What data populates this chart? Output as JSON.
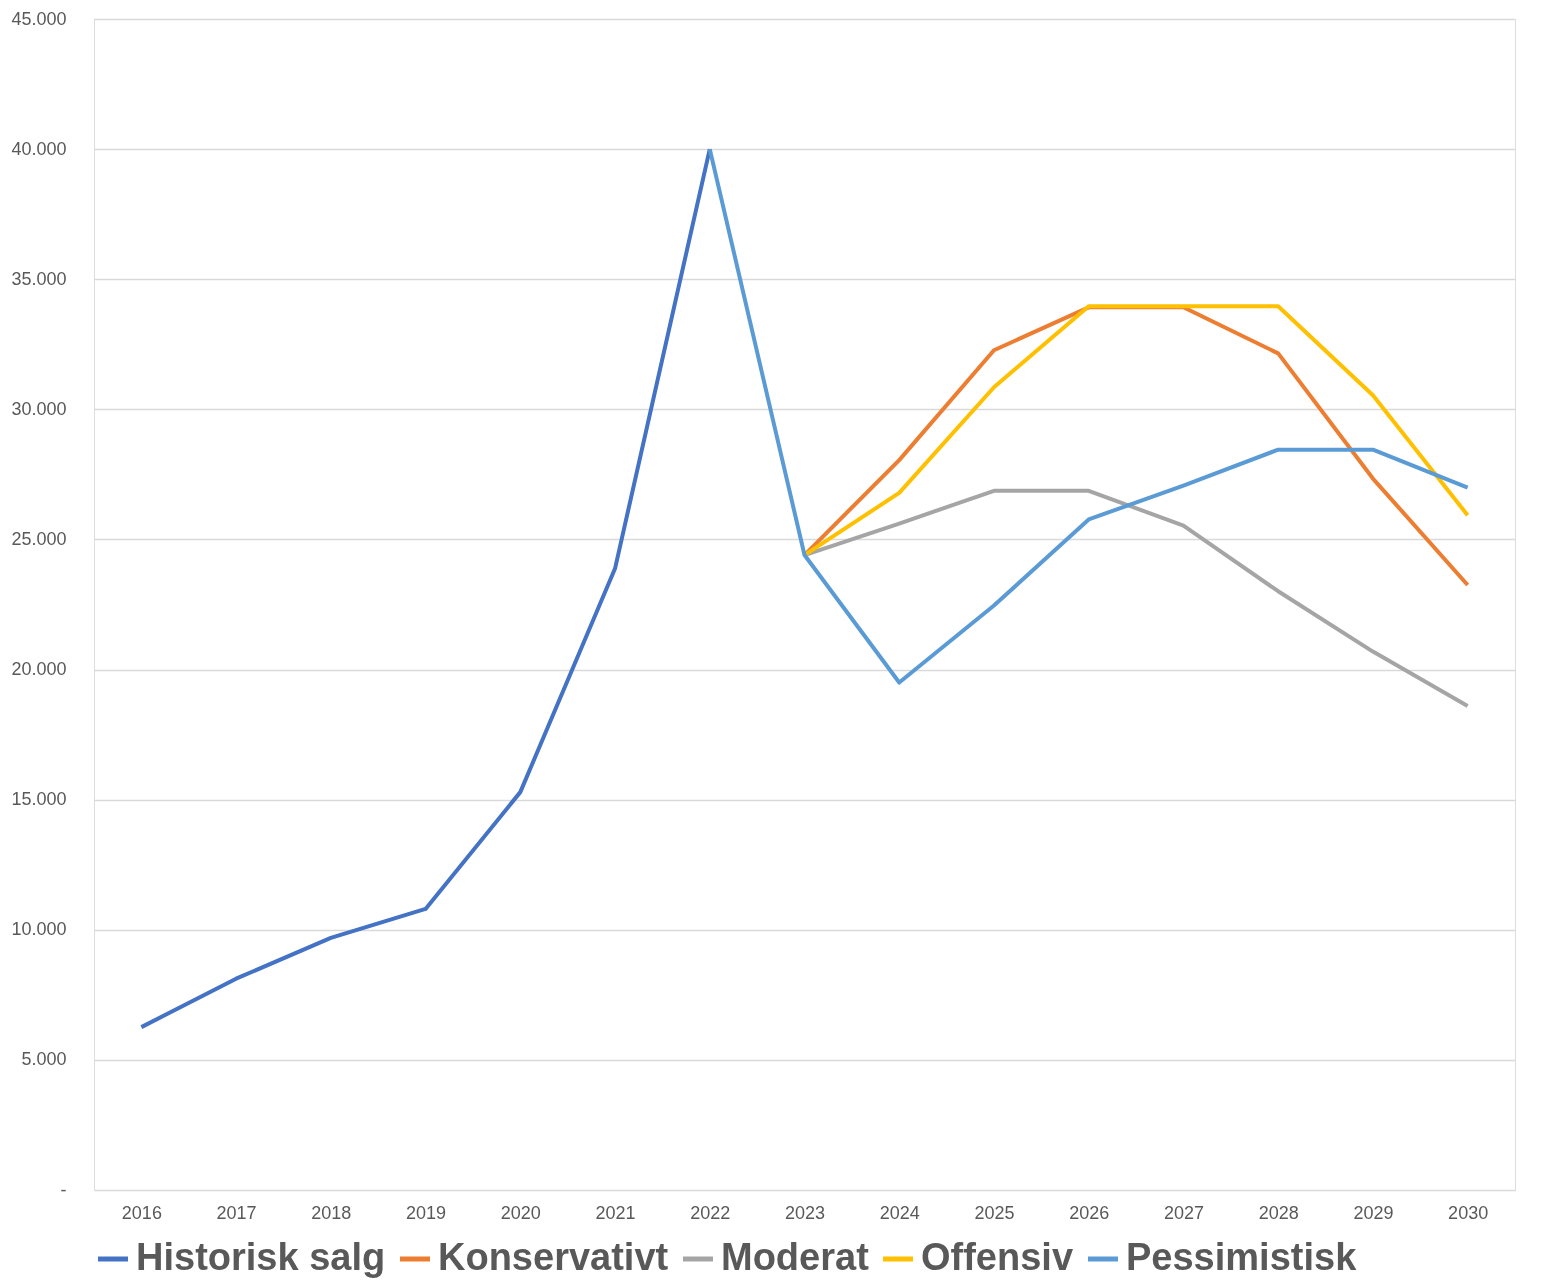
{
  "chart_data": {
    "type": "line",
    "categories": [
      "2016",
      "2017",
      "2018",
      "2019",
      "2020",
      "2021",
      "2022",
      "2023",
      "2024",
      "2025",
      "2026",
      "2027",
      "2028",
      "2029",
      "2030"
    ],
    "series": [
      {
        "name": "Historisk salg",
        "color": "#4472c4",
        "values": [
          6260,
          8120,
          9690,
          10800,
          15290,
          23880,
          40000,
          null,
          null,
          null,
          null,
          null,
          null,
          null,
          null
        ]
      },
      {
        "name": "Konservativt",
        "color": "#ed7d31",
        "values": [
          null,
          null,
          null,
          null,
          null,
          null,
          null,
          24400,
          28050,
          32270,
          33920,
          33920,
          32150,
          27340,
          23250
        ]
      },
      {
        "name": "Moderat",
        "color": "#a5a5a5",
        "values": [
          null,
          null,
          null,
          null,
          null,
          null,
          null,
          24400,
          25610,
          26870,
          26870,
          25530,
          23010,
          20690,
          18600
        ]
      },
      {
        "name": "Offensiv",
        "color": "#ffc000",
        "values": [
          null,
          null,
          null,
          null,
          null,
          null,
          null,
          24400,
          26790,
          30850,
          33960,
          33960,
          33960,
          30540,
          25930
        ]
      },
      {
        "name": "Pessimistisk",
        "color": "#5b9bd5",
        "values": [
          null,
          null,
          null,
          null,
          null,
          null,
          40000,
          24400,
          19500,
          22460,
          25770,
          27070,
          28450,
          28450,
          26990
        ]
      }
    ],
    "ylim": [
      0,
      45000
    ],
    "yticks": [
      {
        "value": 0,
        "label": "-"
      },
      {
        "value": 5000,
        "label": "5.000"
      },
      {
        "value": 10000,
        "label": "10.000"
      },
      {
        "value": 15000,
        "label": "15.000"
      },
      {
        "value": 20000,
        "label": "20.000"
      },
      {
        "value": 25000,
        "label": "25.000"
      },
      {
        "value": 30000,
        "label": "30.000"
      },
      {
        "value": 35000,
        "label": "35.000"
      },
      {
        "value": 40000,
        "label": "40.000"
      },
      {
        "value": 45000,
        "label": "45.000"
      }
    ],
    "grid": "y",
    "legend": "bottom",
    "marker": "none",
    "line_style": "solid"
  }
}
